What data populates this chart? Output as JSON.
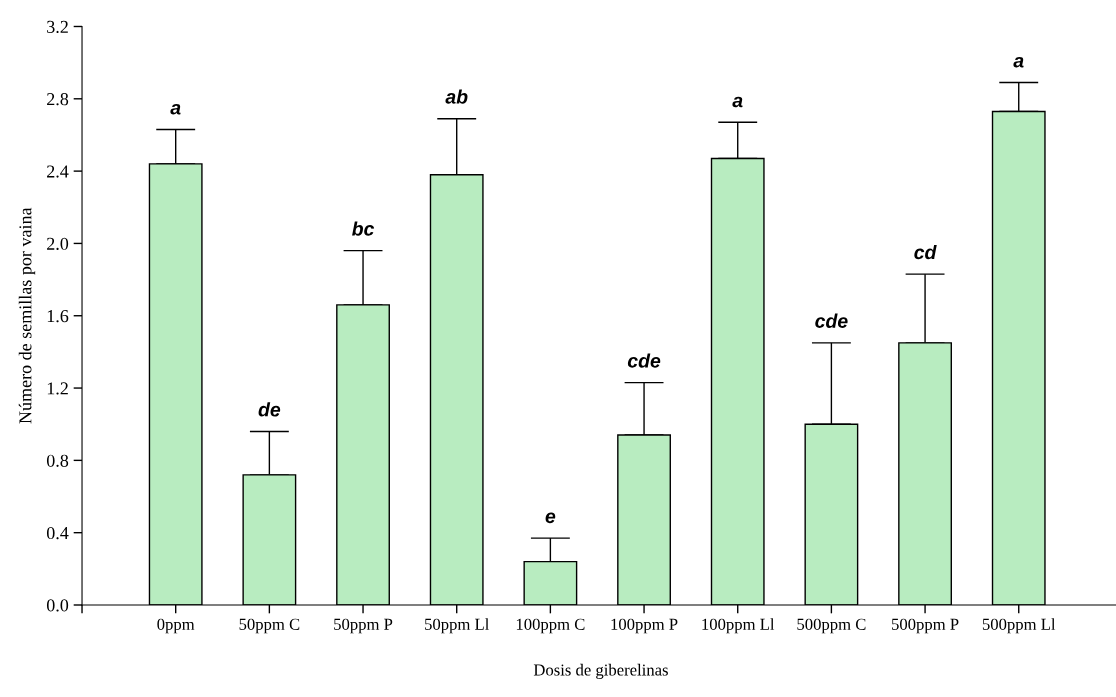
{
  "chart_data": {
    "type": "bar",
    "xlabel": "Dosis de giberelinas",
    "ylabel": "Número de semillas por vaina",
    "categories": [
      "0ppm",
      "50ppm C",
      "50ppm P",
      "50ppm Ll",
      "100ppm C",
      "100ppm P",
      "100ppm Ll",
      "500ppm C",
      "500ppm P",
      "500ppm Ll"
    ],
    "values": [
      2.44,
      0.72,
      1.66,
      2.38,
      0.24,
      0.94,
      2.47,
      1.0,
      1.45,
      2.73
    ],
    "errors": [
      [
        2.44,
        2.63
      ],
      [
        0.72,
        0.96
      ],
      [
        1.66,
        1.96
      ],
      [
        2.38,
        2.69
      ],
      [
        0.24,
        0.37
      ],
      [
        0.94,
        1.23
      ],
      [
        2.47,
        2.67
      ],
      [
        1.0,
        1.45
      ],
      [
        1.45,
        1.83
      ],
      [
        2.73,
        2.89
      ]
    ],
    "color": "#b8ecc0",
    "ylim": [
      0,
      3.2
    ],
    "yticks": [
      {
        "value": 0,
        "label": "0.0"
      },
      {
        "value": 0.4,
        "label": "0.4"
      },
      {
        "value": 0.8,
        "label": "0.8"
      },
      {
        "value": 1.2,
        "label": "1.2"
      },
      {
        "value": 1.6,
        "label": "1.6"
      },
      {
        "value": 2.0,
        "label": "2.0"
      },
      {
        "value": 2.4,
        "label": "2.4"
      },
      {
        "value": 2.8,
        "label": "2.8"
      },
      {
        "value": 3.2,
        "label": "3.2"
      }
    ],
    "grid": false,
    "legend": false,
    "annotations": [
      {
        "text": "a",
        "x": "0ppm",
        "y": 2.63
      },
      {
        "text": "de",
        "x": "50ppm C",
        "y": 0.96
      },
      {
        "text": "bc",
        "x": "50ppm P",
        "y": 1.96
      },
      {
        "text": "ab",
        "x": "50ppm Ll",
        "y": 2.69
      },
      {
        "text": "e",
        "x": "100ppm C",
        "y": 0.37
      },
      {
        "text": "cde",
        "x": "100ppm P",
        "y": 1.23
      },
      {
        "text": "a",
        "x": "100ppm Ll",
        "y": 2.67
      },
      {
        "text": "cde",
        "x": "500ppm C",
        "y": 1.45
      },
      {
        "text": "cd",
        "x": "500ppm P",
        "y": 1.83
      },
      {
        "text": "a",
        "x": "500ppm Ll",
        "y": 2.89
      }
    ]
  }
}
